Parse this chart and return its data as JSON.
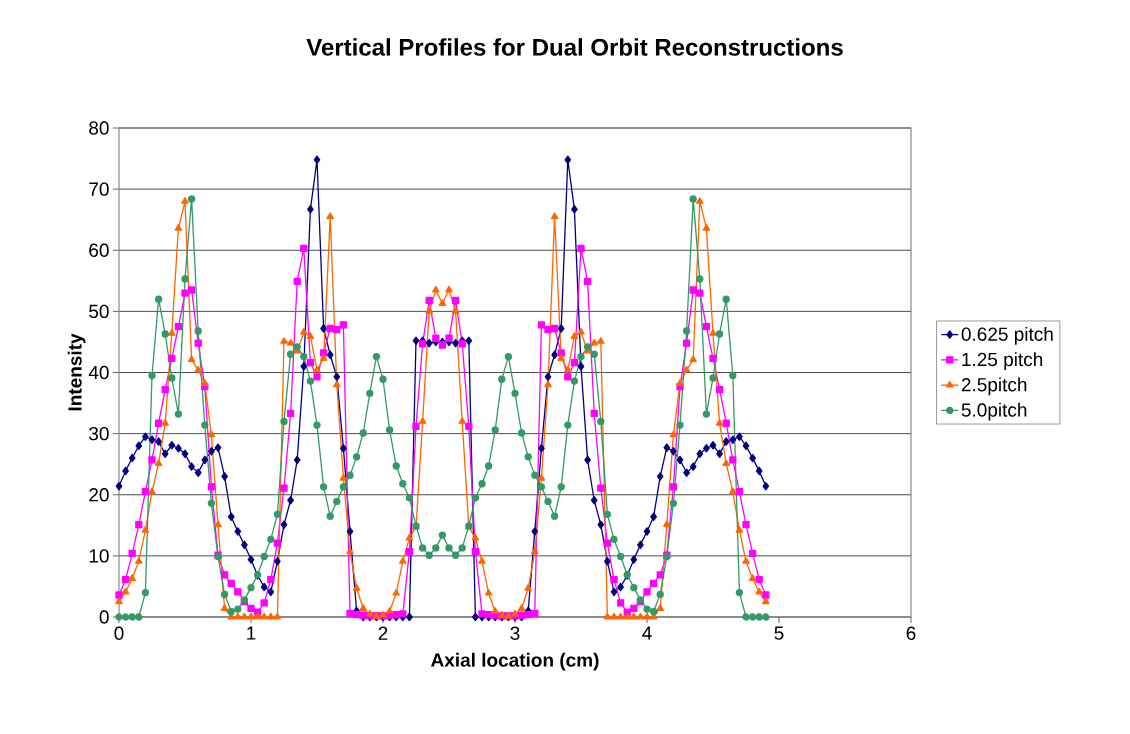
{
  "chart_data": {
    "type": "line",
    "title": "Vertical Profiles for Dual Orbit Reconstructions",
    "xlabel": "Axial location (cm)",
    "ylabel": "Intensity",
    "x": [
      0,
      0.05,
      0.1,
      0.15,
      0.2,
      0.25,
      0.3,
      0.35,
      0.4,
      0.45,
      0.5,
      0.55,
      0.6,
      0.65,
      0.7,
      0.75,
      0.8,
      0.85,
      0.9,
      0.95,
      1,
      1.05,
      1.1,
      1.15,
      1.2,
      1.25,
      1.3,
      1.35,
      1.4,
      1.45,
      1.5,
      1.55,
      1.6,
      1.65,
      1.7,
      1.75,
      1.8,
      1.85,
      1.9,
      1.95,
      2,
      2.05,
      2.1,
      2.15,
      2.2,
      2.25,
      2.3,
      2.35,
      2.4,
      2.45,
      2.5,
      2.55,
      2.6,
      2.65,
      2.7,
      2.75,
      2.8,
      2.85,
      2.9,
      2.95,
      3,
      3.05,
      3.1,
      3.15,
      3.2,
      3.25,
      3.3,
      3.35,
      3.4,
      3.45,
      3.5,
      3.55,
      3.6,
      3.65,
      3.7,
      3.75,
      3.8,
      3.85,
      3.9,
      3.95,
      4,
      4.05,
      4.1,
      4.15,
      4.2,
      4.25,
      4.3,
      4.35,
      4.4,
      4.45,
      4.5,
      4.55,
      4.6,
      4.65,
      4.7,
      4.75,
      4.8,
      4.85,
      4.9
    ],
    "series": [
      {
        "name": "0.625 pitch",
        "color": "#000080",
        "marker": "diamond",
        "values": [
          21.4,
          23.9,
          26,
          28,
          29.5,
          29,
          28.7,
          26.7,
          28.1,
          27.6,
          26.7,
          24.6,
          23.6,
          25.7,
          27.1,
          27.7,
          23,
          16.4,
          14,
          11.8,
          9.4,
          6.8,
          4.9,
          4.1,
          9.1,
          15.1,
          19.1,
          25.7,
          41,
          66.7,
          74.8,
          47.2,
          42.9,
          39.3,
          27.6,
          14,
          1,
          0,
          0,
          0,
          0,
          0,
          0,
          0,
          0,
          45.2,
          45.2,
          44.8,
          45,
          45,
          45,
          44.8,
          45.2,
          45.2,
          0,
          0,
          0,
          0,
          0,
          0,
          0,
          0,
          1,
          14,
          27.6,
          39.3,
          42.9,
          47.2,
          74.8,
          66.7,
          41,
          25.7,
          19.1,
          15.1,
          9.1,
          4.1,
          4.9,
          6.8,
          9.4,
          11.8,
          14,
          16.4,
          23,
          27.7,
          27.1,
          25.7,
          23.6,
          24.6,
          26.7,
          27.6,
          28.1,
          26.7,
          28.7,
          29,
          29.5,
          28,
          26,
          23.9,
          21.4
        ]
      },
      {
        "name": "1.25 pitch",
        "color": "#ff00ff",
        "marker": "square",
        "values": [
          3.6,
          6.1,
          10.4,
          15.1,
          20.5,
          25.7,
          31.7,
          37.2,
          42.3,
          47.5,
          53,
          53.5,
          44.8,
          37.7,
          21.3,
          10.1,
          6.9,
          5.5,
          4.1,
          2.5,
          1.4,
          0.8,
          2.3,
          6.1,
          12.1,
          21.1,
          33.3,
          54.9,
          60.3,
          41.6,
          39.3,
          43.2,
          47.2,
          47,
          47.8,
          0.6,
          0.4,
          0.3,
          0.2,
          0.2,
          0.2,
          0.3,
          0.4,
          0.5,
          10.7,
          31.2,
          44.7,
          51.8,
          45.6,
          44.5,
          45.6,
          51.8,
          44.7,
          31.2,
          10.7,
          0.5,
          0.4,
          0.3,
          0.2,
          0.2,
          0.2,
          0.3,
          0.4,
          0.6,
          47.8,
          47,
          47.2,
          43.2,
          39.3,
          41.6,
          60.3,
          54.9,
          33.3,
          21.1,
          12.1,
          6.1,
          2.3,
          0.8,
          1.4,
          2.5,
          4.1,
          5.5,
          6.9,
          10.1,
          21.3,
          37.7,
          44.8,
          53.5,
          53,
          47.5,
          42.3,
          37.2,
          31.7,
          25.7,
          20.5,
          15.1,
          10.4,
          6.1,
          3.6
        ]
      },
      {
        "name": "2.5pitch",
        "color": "#ff6600",
        "marker": "triangle",
        "values": [
          2.5,
          4.1,
          6.3,
          9.1,
          14.2,
          20.5,
          25.1,
          31.7,
          46.4,
          63.6,
          68,
          42.1,
          40.4,
          38.2,
          29.8,
          15.1,
          1.4,
          0,
          0,
          0,
          0,
          0,
          0,
          0,
          0,
          45.1,
          44.8,
          43.5,
          46.6,
          45.9,
          40.4,
          42.3,
          65.5,
          38,
          22.7,
          10.7,
          4.7,
          1.4,
          0.5,
          0.1,
          0.3,
          0.9,
          3.9,
          9.1,
          12.9,
          14.7,
          32,
          50,
          53.5,
          51.3,
          53.5,
          50,
          32,
          14.7,
          12.9,
          9.1,
          3.9,
          0.9,
          0.3,
          0.1,
          0.5,
          1.4,
          4.7,
          10.7,
          22.7,
          38,
          65.5,
          42.3,
          40.4,
          45.9,
          46.6,
          43.5,
          44.8,
          45.1,
          0,
          0,
          0,
          0,
          0,
          0,
          0,
          0,
          1.4,
          15.1,
          29.8,
          38.2,
          40.4,
          42.1,
          68,
          63.6,
          46.4,
          31.7,
          25.1,
          20.5,
          14.2,
          9.1,
          6.3,
          4.1,
          2.5
        ]
      },
      {
        "name": "5.0pitch",
        "color": "#339966",
        "marker": "circle",
        "values": [
          0,
          0,
          0,
          0,
          4,
          39.5,
          52,
          46.3,
          39.1,
          33.2,
          55.3,
          68.4,
          46.8,
          31.4,
          18.6,
          9.9,
          3.7,
          0.9,
          1.3,
          2.8,
          4.8,
          6.9,
          9.9,
          12.7,
          16.8,
          32,
          43,
          44.2,
          42.6,
          38.6,
          31.4,
          21.3,
          16.5,
          18.9,
          21.3,
          23.2,
          26.2,
          30.1,
          36.6,
          42.6,
          38.9,
          30.6,
          24.7,
          21.8,
          19.5,
          14.9,
          11.3,
          10.1,
          11.3,
          13.4,
          11.3,
          10.1,
          11.3,
          14.9,
          19.5,
          21.8,
          24.7,
          30.6,
          38.9,
          42.6,
          36.6,
          30.1,
          26.2,
          23.2,
          21.3,
          18.9,
          16.5,
          21.3,
          31.4,
          38.6,
          42.6,
          44.2,
          43,
          32,
          16.8,
          12.7,
          9.9,
          6.9,
          4.8,
          2.8,
          1.3,
          0.9,
          3.7,
          9.9,
          18.6,
          31.4,
          46.8,
          68.4,
          55.3,
          33.2,
          39.1,
          46.3,
          52,
          39.5,
          4,
          0,
          0,
          0,
          0
        ]
      }
    ],
    "xlim": [
      0,
      6
    ],
    "ylim": [
      0,
      80
    ],
    "xticks": [
      0,
      1,
      2,
      3,
      4,
      5,
      6
    ],
    "yticks": [
      0,
      10,
      20,
      30,
      40,
      50,
      60,
      70,
      80
    ],
    "grid": "y",
    "legend": "right"
  }
}
